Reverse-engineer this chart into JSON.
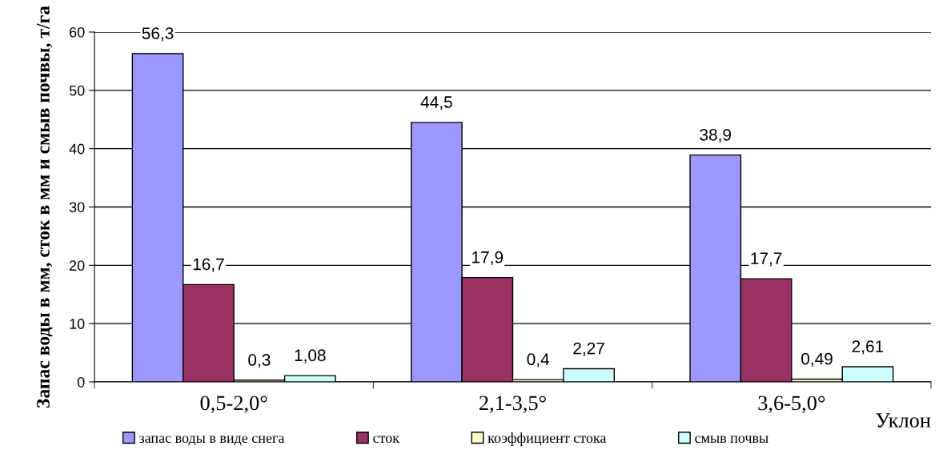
{
  "chart_data": {
    "type": "bar",
    "ylabel": "Запас воды в мм, сток в мм и смыв почвы, т/га",
    "xlabel": "Уклон",
    "categories": [
      "0,5-2,0°",
      "2,1-3,5°",
      "3,6-5,0°"
    ],
    "series": [
      {
        "name": "запас воды в виде снега",
        "color": "#9999ff",
        "values": [
          56.3,
          44.5,
          38.9
        ],
        "value_labels": [
          "56,3",
          "44,5",
          "38,9"
        ]
      },
      {
        "name": "сток",
        "color": "#993366",
        "values": [
          16.7,
          17.9,
          17.7
        ],
        "value_labels": [
          "16,7",
          "17,9",
          "17,7"
        ]
      },
      {
        "name": "коэффициент стока",
        "color": "#ffffcc",
        "values": [
          0.3,
          0.4,
          0.49
        ],
        "value_labels": [
          "0,3",
          "0,4",
          "0,49"
        ]
      },
      {
        "name": "смыв почвы",
        "color": "#ccffff",
        "values": [
          1.08,
          2.27,
          2.61
        ],
        "value_labels": [
          "1,08",
          "2,27",
          "2,61"
        ]
      }
    ],
    "ylim": [
      0,
      60
    ],
    "yticks": [
      0,
      10,
      20,
      30,
      40,
      50,
      60
    ],
    "grid": "y",
    "legend": "bottom"
  }
}
